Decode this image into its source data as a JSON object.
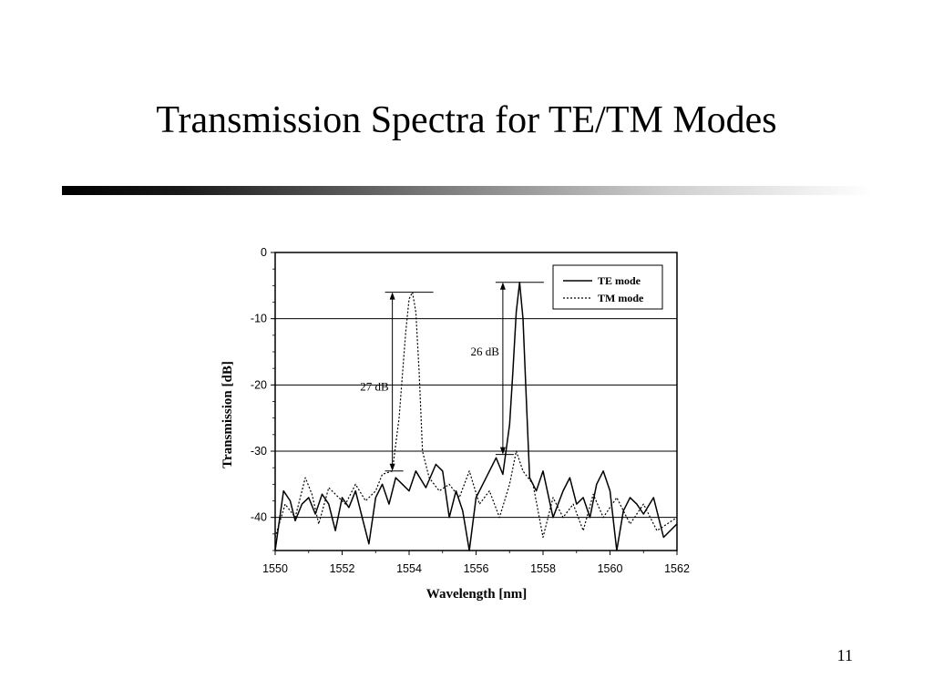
{
  "slide": {
    "title": "Transmission Spectra for TE/TM Modes",
    "page_number": "11"
  },
  "chart_data": {
    "type": "line",
    "xlabel": "Wavelength [nm]",
    "ylabel": "Transmission [dB]",
    "xlim": [
      1550,
      1562
    ],
    "ylim": [
      -45,
      0
    ],
    "xticks": [
      1550,
      1552,
      1554,
      1556,
      1558,
      1560,
      1562
    ],
    "yticks": [
      0,
      -10,
      -20,
      -30,
      -40
    ],
    "grid": "horizontal",
    "legend_position": "top-right",
    "series": [
      {
        "name": "TE mode",
        "style": "solid",
        "color": "#000000",
        "x": [
          1550.0,
          1550.25,
          1550.45,
          1550.6,
          1550.8,
          1551.0,
          1551.2,
          1551.4,
          1551.6,
          1551.8,
          1552.0,
          1552.2,
          1552.4,
          1552.6,
          1552.8,
          1553.0,
          1553.2,
          1553.4,
          1553.6,
          1553.8,
          1554.0,
          1554.2,
          1554.5,
          1554.8,
          1555.0,
          1555.2,
          1555.4,
          1555.6,
          1555.8,
          1556.0,
          1556.2,
          1556.4,
          1556.6,
          1556.8,
          1557.0,
          1557.1,
          1557.2,
          1557.3,
          1557.4,
          1557.5,
          1557.6,
          1557.8,
          1558.0,
          1558.3,
          1558.6,
          1558.8,
          1559.0,
          1559.2,
          1559.4,
          1559.6,
          1559.8,
          1560.0,
          1560.2,
          1560.4,
          1560.6,
          1560.8,
          1561.0,
          1561.3,
          1561.6,
          1562.0
        ],
        "y": [
          -45.0,
          -36.0,
          -37.5,
          -40.5,
          -38.0,
          -37.0,
          -39.5,
          -36.5,
          -38.0,
          -42.0,
          -37.0,
          -38.5,
          -36.0,
          -40.0,
          -44.0,
          -37.0,
          -35.0,
          -38.0,
          -34.0,
          -35.0,
          -36.0,
          -33.0,
          -35.5,
          -32.0,
          -33.0,
          -40.0,
          -36.0,
          -39.0,
          -45.0,
          -37.0,
          -35.0,
          -33.0,
          -31.0,
          -33.5,
          -26.0,
          -18.0,
          -9.0,
          -4.5,
          -10.0,
          -22.0,
          -34.0,
          -36.0,
          -33.0,
          -40.0,
          -36.0,
          -34.0,
          -38.0,
          -37.0,
          -40.0,
          -35.0,
          -33.0,
          -36.0,
          -45.0,
          -39.0,
          -37.0,
          -38.0,
          -39.5,
          -37.0,
          -43.0,
          -41.0
        ]
      },
      {
        "name": "TM mode",
        "style": "dotted",
        "color": "#000000",
        "x": [
          1550.0,
          1550.3,
          1550.6,
          1550.9,
          1551.1,
          1551.3,
          1551.6,
          1551.9,
          1552.1,
          1552.4,
          1552.7,
          1553.0,
          1553.2,
          1553.5,
          1553.7,
          1553.9,
          1554.0,
          1554.1,
          1554.2,
          1554.3,
          1554.4,
          1554.6,
          1554.9,
          1555.2,
          1555.5,
          1555.8,
          1556.1,
          1556.4,
          1556.7,
          1557.0,
          1557.2,
          1557.4,
          1557.7,
          1558.0,
          1558.3,
          1558.6,
          1558.9,
          1559.2,
          1559.5,
          1559.8,
          1560.2,
          1560.6,
          1561.0,
          1561.4,
          1562.0
        ],
        "y": [
          -43.0,
          -38.0,
          -40.0,
          -34.0,
          -36.5,
          -41.0,
          -35.5,
          -37.0,
          -38.0,
          -35.0,
          -37.5,
          -36.0,
          -33.5,
          -33.0,
          -25.0,
          -12.0,
          -7.0,
          -6.0,
          -9.0,
          -18.0,
          -30.0,
          -34.0,
          -36.0,
          -35.0,
          -37.0,
          -33.0,
          -38.0,
          -36.0,
          -40.0,
          -35.0,
          -30.0,
          -33.0,
          -35.0,
          -43.0,
          -37.0,
          -40.0,
          -38.0,
          -42.0,
          -36.5,
          -40.0,
          -37.0,
          -41.0,
          -38.0,
          -42.0,
          -40.0
        ]
      }
    ],
    "annotations": [
      {
        "label": "27 dB",
        "x": 1553.5,
        "y_top": -6,
        "y_bottom": -33
      },
      {
        "label": "26 dB",
        "x": 1556.8,
        "y_top": -4.5,
        "y_bottom": -30.5
      }
    ]
  }
}
